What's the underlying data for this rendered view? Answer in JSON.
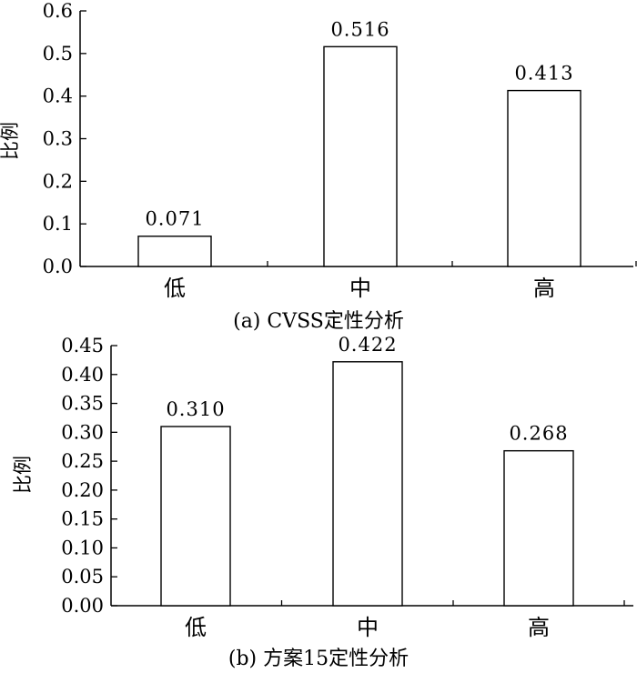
{
  "chart_data": [
    {
      "type": "bar",
      "caption": "(a) CVSS定性分析",
      "ylabel": "比例",
      "xlabel": "",
      "categories": [
        "低",
        "中",
        "高"
      ],
      "values": [
        0.071,
        0.516,
        0.413
      ],
      "value_labels": [
        "0.071",
        "0.516",
        "0.413"
      ],
      "ylim": [
        0,
        0.6
      ],
      "yticks": [
        0.0,
        0.1,
        0.2,
        0.3,
        0.4,
        0.5,
        0.6
      ],
      "ytick_labels": [
        "0.0",
        "0.1",
        "0.2",
        "0.3",
        "0.4",
        "0.5",
        "0.6"
      ],
      "grid": false,
      "legend": "none",
      "bar_fill": "#ffffff",
      "bar_edge": "#000000"
    },
    {
      "type": "bar",
      "caption": "(b) 方案15定性分析",
      "ylabel": "比例",
      "xlabel": "",
      "categories": [
        "低",
        "中",
        "高"
      ],
      "values": [
        0.31,
        0.422,
        0.268
      ],
      "value_labels": [
        "0.310",
        "0.422",
        "0.268"
      ],
      "ylim": [
        0,
        0.45
      ],
      "yticks": [
        0.0,
        0.05,
        0.1,
        0.15,
        0.2,
        0.25,
        0.3,
        0.35,
        0.4,
        0.45
      ],
      "ytick_labels": [
        "0.00",
        "0.05",
        "0.10",
        "0.15",
        "0.20",
        "0.25",
        "0.30",
        "0.35",
        "0.40",
        "0.45"
      ],
      "grid": false,
      "legend": "none",
      "bar_fill": "#ffffff",
      "bar_edge": "#000000"
    }
  ]
}
